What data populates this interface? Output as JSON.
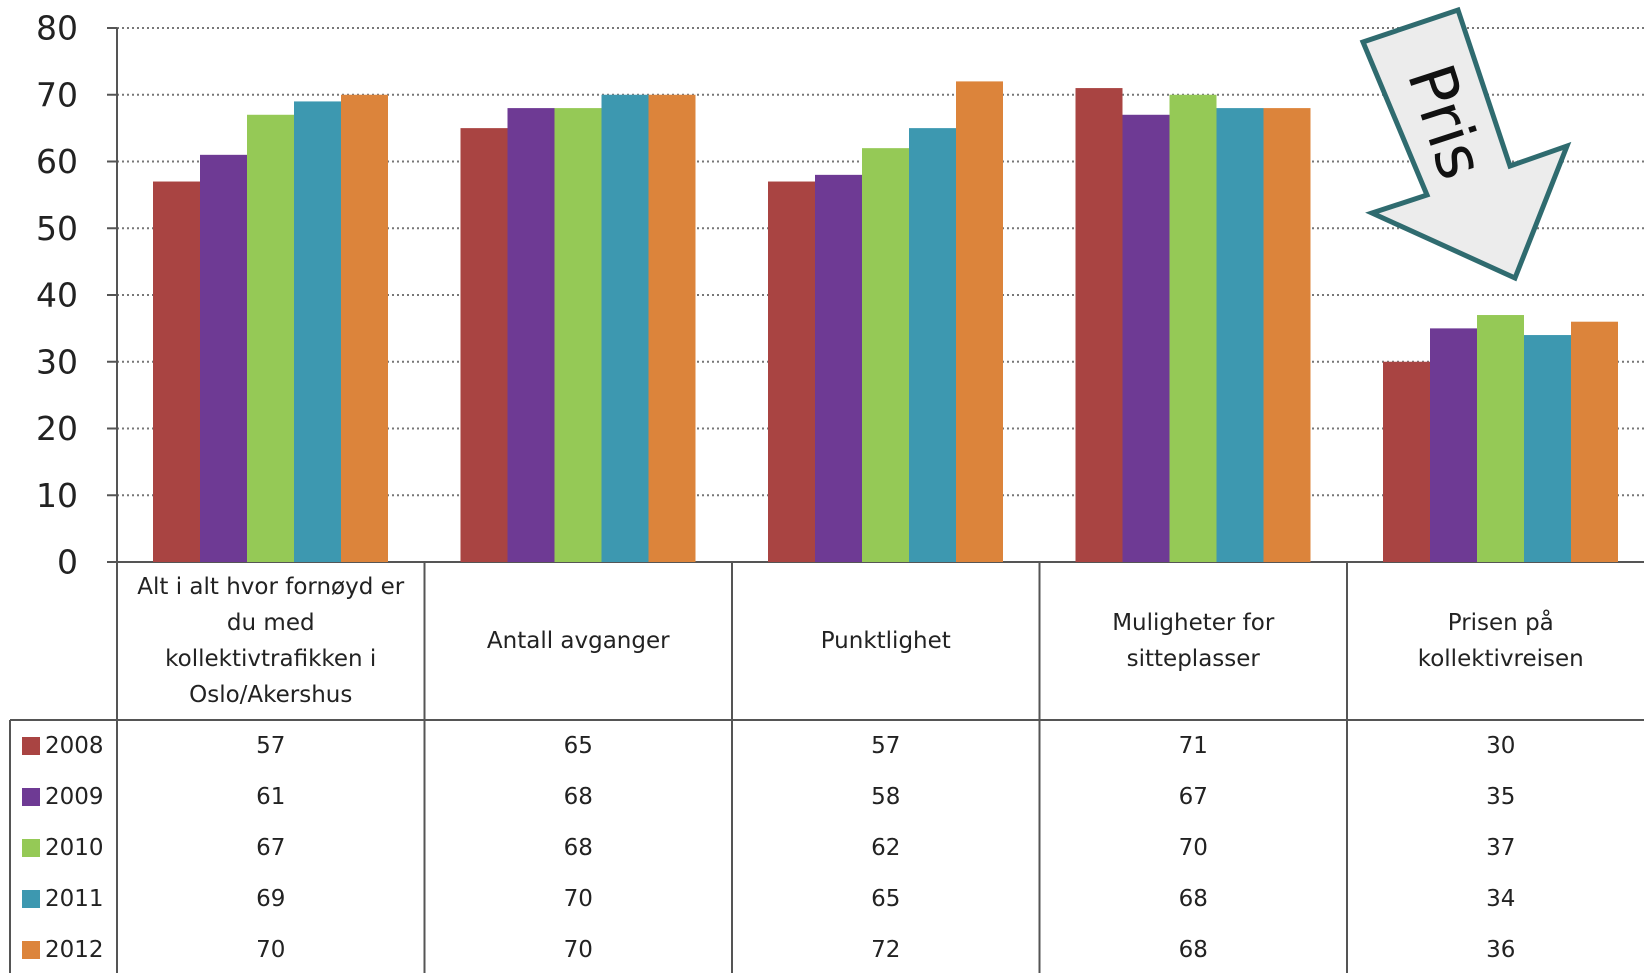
{
  "chart_data": {
    "type": "bar",
    "categories": [
      [
        "Alt i alt hvor fornøyd er",
        "du med",
        "kollektivtrafikken i",
        "Oslo/Akershus"
      ],
      [
        "Antall avganger"
      ],
      [
        "Punktlighet"
      ],
      [
        "Muligheter for",
        "sitteplasser"
      ],
      [
        "Prisen på",
        "kollektivreisen"
      ]
    ],
    "series": [
      {
        "name": "2008",
        "color": "#a94442",
        "values": [
          57,
          65,
          57,
          71,
          30
        ]
      },
      {
        "name": "2009",
        "color": "#6e3a94",
        "values": [
          61,
          68,
          58,
          67,
          35
        ]
      },
      {
        "name": "2010",
        "color": "#95c956",
        "values": [
          67,
          68,
          62,
          70,
          37
        ]
      },
      {
        "name": "2011",
        "color": "#3d98b0",
        "values": [
          69,
          70,
          65,
          68,
          34
        ]
      },
      {
        "name": "2012",
        "color": "#dc843b",
        "values": [
          70,
          70,
          72,
          68,
          36
        ]
      }
    ],
    "yticks": [
      "0",
      "10",
      "20",
      "30",
      "40",
      "50",
      "60",
      "70",
      "80"
    ],
    "ylim": [
      0,
      80
    ],
    "grid": "horizontal dotted",
    "legend": "data table",
    "annotation": {
      "text": "Pris",
      "shape": "arrow"
    }
  }
}
